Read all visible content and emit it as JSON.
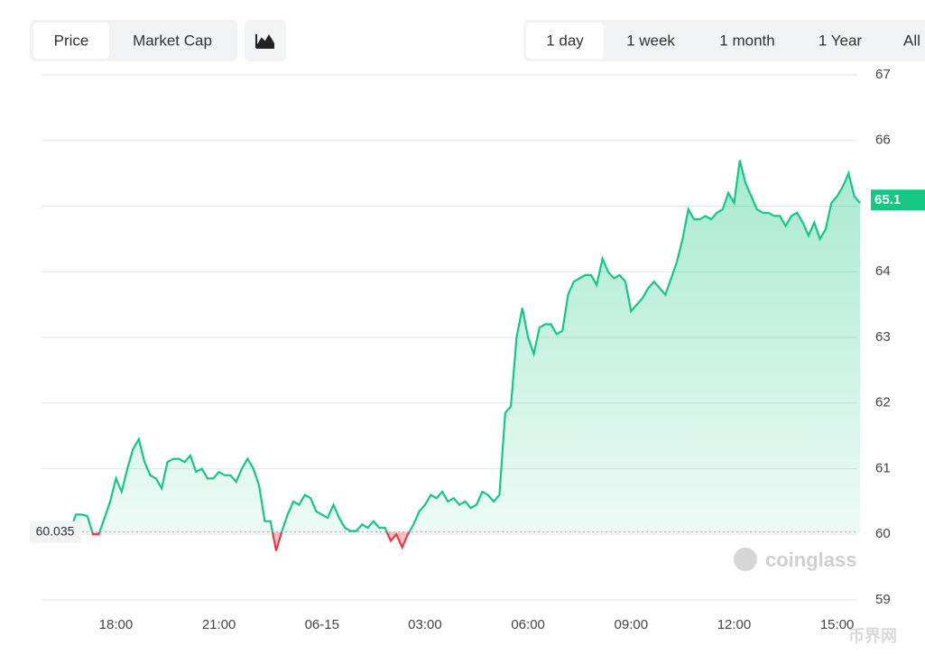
{
  "tabs": [
    "Price",
    "Market Cap"
  ],
  "ranges": [
    "1 day",
    "1 week",
    "1 month",
    "1 Year",
    "All"
  ],
  "watermark": "coinglass",
  "corner_watermark": "币界网",
  "chart_data": {
    "type": "line",
    "categories": [
      null,
      null,
      null,
      null,
      null,
      null,
      null,
      null,
      null,
      null,
      null,
      null,
      null,
      "18:00",
      null,
      null,
      null,
      null,
      null,
      null,
      null,
      null,
      null,
      null,
      null,
      null,
      null,
      null,
      null,
      null,
      null,
      "21:00",
      null,
      null,
      null,
      null,
      null,
      null,
      null,
      null,
      null,
      null,
      null,
      null,
      null,
      null,
      null,
      null,
      null,
      "06-15",
      null,
      null,
      null,
      null,
      null,
      null,
      null,
      null,
      null,
      null,
      null,
      null,
      null,
      null,
      null,
      null,
      null,
      "03:00",
      null,
      null,
      null,
      null,
      null,
      null,
      null,
      null,
      null,
      null,
      null,
      null,
      null,
      null,
      null,
      null,
      null,
      "06:00",
      null,
      null,
      null,
      null,
      null,
      null,
      null,
      null,
      null,
      null,
      null,
      null,
      null,
      null,
      null,
      null,
      null,
      "09:00",
      null,
      null,
      null,
      null,
      null,
      null,
      null,
      null,
      null,
      null,
      null,
      null,
      null,
      null,
      null,
      null,
      null,
      "12:00",
      null,
      null,
      null,
      null,
      null,
      null,
      null,
      null,
      null,
      null,
      null,
      null,
      null,
      null,
      null,
      null,
      null,
      "15:00",
      null,
      null,
      null,
      null
    ],
    "values": [
      60.1,
      60.05,
      60.0,
      60.05,
      60.05,
      60.05,
      60.3,
      60.3,
      60.28,
      60.0,
      60.0,
      60.25,
      60.5,
      60.85,
      60.65,
      61.0,
      61.3,
      61.45,
      61.1,
      60.9,
      60.85,
      60.7,
      61.1,
      61.15,
      61.15,
      61.1,
      61.2,
      60.95,
      61.0,
      60.85,
      60.85,
      60.95,
      60.9,
      60.9,
      60.8,
      61.0,
      61.15,
      61.0,
      60.75,
      60.2,
      60.2,
      59.75,
      60.05,
      60.3,
      60.5,
      60.45,
      60.6,
      60.55,
      60.35,
      60.3,
      60.25,
      60.45,
      60.25,
      60.1,
      60.05,
      60.05,
      60.15,
      60.1,
      60.2,
      60.1,
      60.1,
      59.9,
      60.0,
      59.8,
      60.0,
      60.15,
      60.35,
      60.45,
      60.6,
      60.55,
      60.65,
      60.5,
      60.55,
      60.45,
      60.5,
      60.4,
      60.45,
      60.65,
      60.6,
      60.5,
      60.6,
      61.85,
      61.95,
      63.0,
      63.45,
      63.0,
      62.75,
      63.15,
      63.2,
      63.2,
      63.05,
      63.1,
      63.65,
      63.85,
      63.9,
      63.95,
      63.95,
      63.8,
      64.2,
      64.0,
      63.9,
      63.95,
      63.85,
      63.4,
      63.5,
      63.6,
      63.75,
      63.85,
      63.75,
      63.65,
      63.9,
      64.15,
      64.5,
      64.95,
      64.8,
      64.8,
      64.85,
      64.8,
      64.9,
      64.95,
      65.2,
      65.05,
      65.7,
      65.35,
      65.15,
      64.95,
      64.9,
      64.9,
      64.85,
      64.85,
      64.7,
      64.85,
      64.9,
      64.75,
      64.55,
      64.75,
      64.5,
      64.65,
      65.05,
      65.15,
      65.3,
      65.5,
      65.15,
      65.05
    ],
    "color": "#16c784",
    "down_color": "#ea3943",
    "baseline": 60.035,
    "last_price": 65.1,
    "ylim": [
      59,
      67
    ],
    "yticks": [
      59,
      60,
      61,
      62,
      63,
      64,
      65,
      66,
      67
    ],
    "grid": true
  }
}
